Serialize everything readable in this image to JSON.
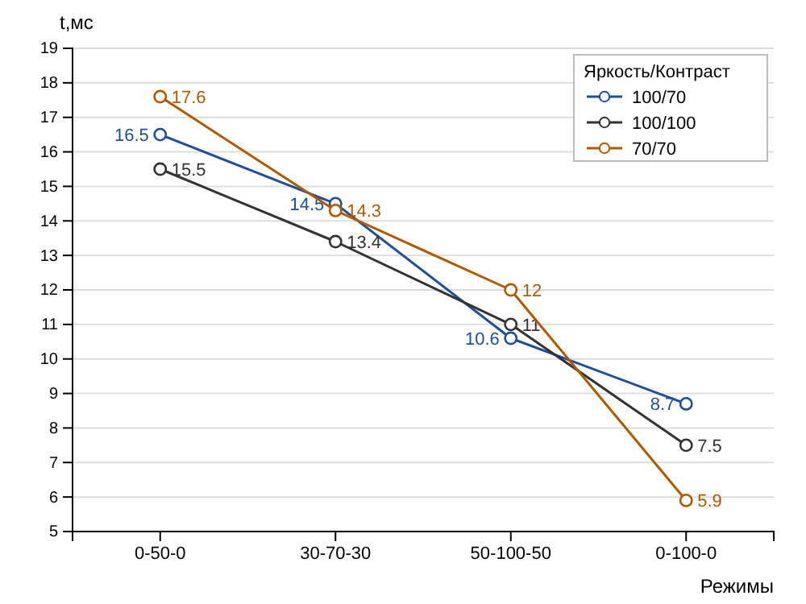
{
  "chart_data": {
    "type": "line",
    "xlabel": "Режимы",
    "ylabel": "t,мс",
    "legend_title": "Яркость/Контраст",
    "legend": "top right",
    "categories": [
      "0-50-0",
      "30-70-30",
      "50-100-50",
      "0-100-0"
    ],
    "series": [
      {
        "name": "100/70",
        "color": "#1f4e9a",
        "values": [
          16.5,
          14.5,
          10.6,
          8.7
        ]
      },
      {
        "name": "100/100",
        "color": "#333333",
        "values": [
          15.5,
          13.4,
          11,
          7.5
        ]
      },
      {
        "name": "70/70",
        "color": "#b05a00",
        "values": [
          17.6,
          14.3,
          12,
          5.9
        ]
      }
    ],
    "ylim": [
      5,
      19
    ],
    "yticks": [
      5,
      6,
      7,
      8,
      9,
      10,
      11,
      12,
      13,
      14,
      15,
      16,
      17,
      18,
      19
    ],
    "grid": "y",
    "marker": "circle",
    "data_labels": true
  }
}
